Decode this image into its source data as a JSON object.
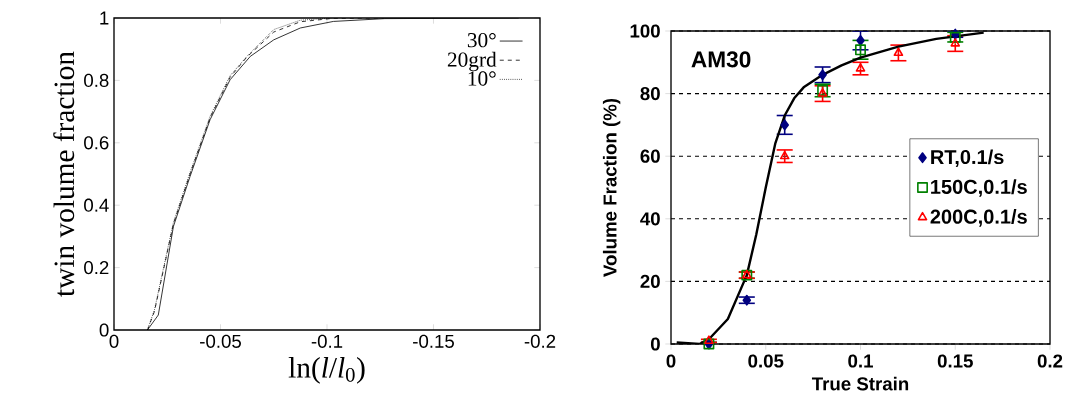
{
  "chart_data": [
    {
      "type": "line",
      "xlabel": "ln(*l*/*l*$_{0}$)",
      "ylabel": "twin volume fraction",
      "xlim": [
        0,
        -0.2
      ],
      "ylim": [
        0,
        1
      ],
      "xticks": [
        0,
        -0.05,
        -0.1,
        -0.15,
        -0.2
      ],
      "yticks": [
        0,
        0.2,
        0.4,
        0.6,
        0.8,
        1
      ],
      "grid": false,
      "legend": "top right",
      "marker": "none",
      "series": [
        {
          "name": "30°",
          "color": "#000000",
          "line_style": "solid",
          "x": [
            -0.0157,
            -0.0208,
            -0.0279,
            -0.0357,
            -0.0451,
            -0.0545,
            -0.064,
            -0.075,
            -0.0875,
            -0.103,
            -0.127,
            -0.19
          ],
          "values": [
            0,
            0.048,
            0.332,
            0.492,
            0.674,
            0.802,
            0.877,
            0.93,
            0.968,
            0.989,
            0.998,
            1
          ]
        },
        {
          "name": "20grd",
          "color": "#000000",
          "line_style": "dashed",
          "x": [
            -0.0157,
            -0.019,
            -0.0279,
            -0.0357,
            -0.0451,
            -0.0545,
            -0.0624,
            -0.075,
            -0.0875,
            -0.103,
            -0.127
          ],
          "values": [
            0,
            0.06,
            0.34,
            0.5,
            0.68,
            0.81,
            0.875,
            0.955,
            0.988,
            0.999,
            1
          ]
        },
        {
          "name": "10°",
          "color": "#000000",
          "line_style": "dotted",
          "x": [
            -0.0157,
            -0.019,
            -0.0279,
            -0.0357,
            -0.0451,
            -0.0545,
            -0.0624,
            -0.075,
            -0.0875,
            -0.103
          ],
          "values": [
            0,
            0.065,
            0.345,
            0.505,
            0.685,
            0.815,
            0.877,
            0.963,
            0.993,
            1
          ]
        }
      ]
    },
    {
      "type": "scatter",
      "xlabel": "True Strain",
      "ylabel": "Volume Fraction (%)",
      "xlim": [
        0,
        0.2
      ],
      "ylim": [
        0,
        100
      ],
      "xticks": [
        0,
        0.05,
        0.1,
        0.15,
        0.2
      ],
      "yticks": [
        0,
        20,
        40,
        60,
        80,
        100
      ],
      "grid": "y",
      "legend": "right",
      "annotations": [
        "AM30"
      ],
      "series": [
        {
          "name": "RT,0.1/s",
          "color": "#000080",
          "marker": "diamond",
          "x": [
            0.02,
            0.04,
            0.06,
            0.08,
            0.1,
            0.15
          ],
          "values": [
            0,
            14,
            70,
            86,
            97,
            99
          ],
          "errors": [
            0.5,
            1,
            3,
            2.5,
            3,
            1
          ]
        },
        {
          "name": "150C,0.1/s",
          "color": "#008000",
          "marker": "square",
          "x": [
            0.02,
            0.04,
            0.08,
            0.1,
            0.15
          ],
          "values": [
            0,
            22,
            81,
            94,
            98
          ],
          "errors": [
            0.5,
            1,
            2,
            3,
            1.5
          ]
        },
        {
          "name": "200C,0.1/s",
          "color": "#ff0000",
          "marker": "triangle",
          "x": [
            0.02,
            0.04,
            0.06,
            0.08,
            0.1,
            0.12,
            0.15
          ],
          "values": [
            1,
            22,
            60,
            80,
            88,
            93,
            96
          ],
          "errors": [
            0.5,
            1,
            2,
            2.5,
            2,
            2.5,
            2.5
          ]
        },
        {
          "type": "line",
          "color": "#000000",
          "line_style": "solid",
          "marker": "none",
          "x": [
            0.003,
            0.015,
            0.02,
            0.03,
            0.04,
            0.045,
            0.05,
            0.055,
            0.06,
            0.065,
            0.07,
            0.08,
            0.09,
            0.1,
            0.12,
            0.14,
            0.165
          ],
          "values": [
            0.5,
            0,
            1.5,
            8,
            22,
            35,
            50,
            64,
            73,
            78.5,
            82,
            86,
            89,
            91.5,
            95,
            97.5,
            99.5
          ]
        }
      ]
    }
  ]
}
